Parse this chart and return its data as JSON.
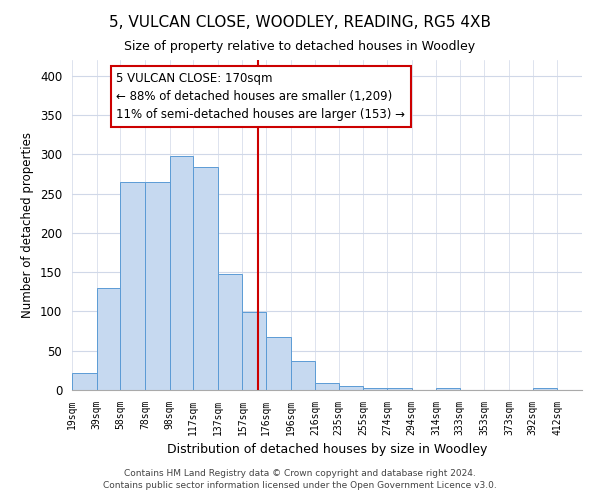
{
  "title": "5, VULCAN CLOSE, WOODLEY, READING, RG5 4XB",
  "subtitle": "Size of property relative to detached houses in Woodley",
  "xlabel": "Distribution of detached houses by size in Woodley",
  "ylabel": "Number of detached properties",
  "bar_labels": [
    "19sqm",
    "39sqm",
    "58sqm",
    "78sqm",
    "98sqm",
    "117sqm",
    "137sqm",
    "157sqm",
    "176sqm",
    "196sqm",
    "216sqm",
    "235sqm",
    "255sqm",
    "274sqm",
    "294sqm",
    "314sqm",
    "333sqm",
    "353sqm",
    "373sqm",
    "392sqm",
    "412sqm"
  ],
  "bar_heights": [
    22,
    130,
    265,
    265,
    298,
    284,
    148,
    99,
    68,
    37,
    9,
    5,
    3,
    3,
    0,
    3,
    0,
    0,
    0,
    3,
    0
  ],
  "bar_edges": [
    19,
    39,
    58,
    78,
    98,
    117,
    137,
    157,
    176,
    196,
    216,
    235,
    255,
    274,
    294,
    314,
    333,
    353,
    373,
    392,
    412,
    432
  ],
  "bar_color": "#c6d9f0",
  "bar_edge_color": "#5b9bd5",
  "vline_x": 170,
  "vline_color": "#cc0000",
  "annotation_title": "5 VULCAN CLOSE: 170sqm",
  "annotation_line1": "← 88% of detached houses are smaller (1,209)",
  "annotation_line2": "11% of semi-detached houses are larger (153) →",
  "annotation_box_color": "#ffffff",
  "annotation_box_edge": "#cc0000",
  "ylim": [
    0,
    420
  ],
  "xlim": [
    19,
    432
  ],
  "background_color": "#ffffff",
  "grid_color": "#d0d8e8",
  "footer_line1": "Contains HM Land Registry data © Crown copyright and database right 2024.",
  "footer_line2": "Contains public sector information licensed under the Open Government Licence v3.0."
}
